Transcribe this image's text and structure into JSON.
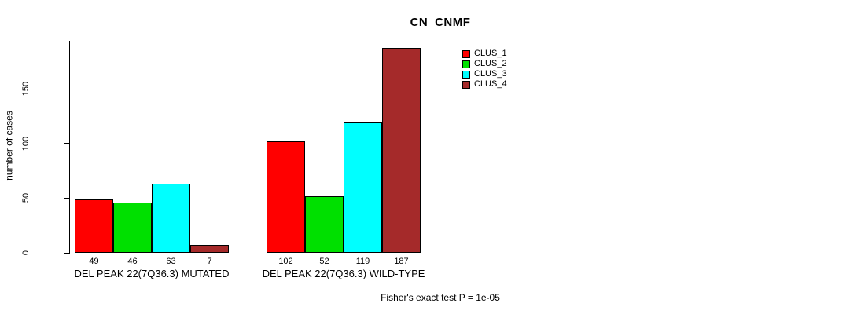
{
  "chart_data": {
    "type": "bar",
    "title": "CN_CNMF",
    "ylabel": "number of cases",
    "yticks": [
      0,
      50,
      100,
      150
    ],
    "ylim": [
      0,
      190
    ],
    "grid": false,
    "legend_position": "top-right",
    "show_value_labels": true,
    "categories": [
      "DEL PEAK 22(7Q36.3) MUTATED",
      "DEL PEAK 22(7Q36.3) WILD-TYPE"
    ],
    "series": [
      {
        "name": "CLUS_1",
        "color": "#FF0000",
        "values": [
          49,
          102
        ]
      },
      {
        "name": "CLUS_2",
        "color": "#00E000",
        "values": [
          46,
          52
        ]
      },
      {
        "name": "CLUS_3",
        "color": "#00FFFF",
        "values": [
          63,
          119
        ]
      },
      {
        "name": "CLUS_4",
        "color": "#A52A2A",
        "values": [
          7,
          187
        ]
      }
    ],
    "annotation": "Fisher's exact test P = 1e-05"
  }
}
